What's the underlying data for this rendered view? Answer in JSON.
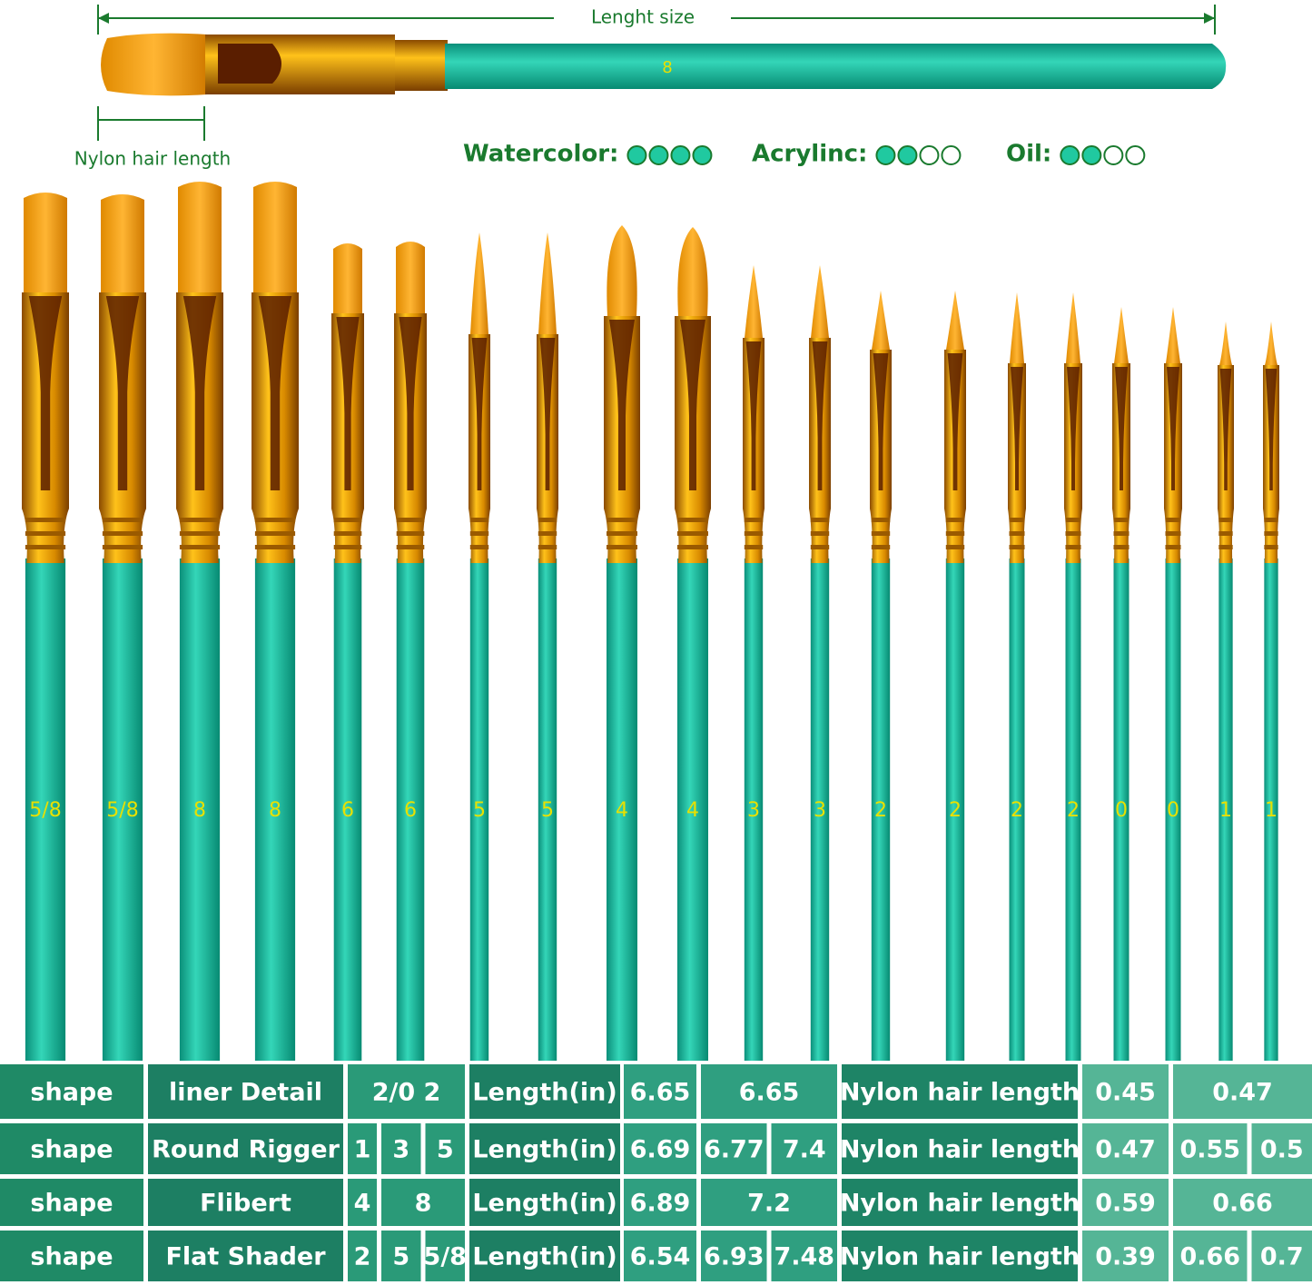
{
  "header": {
    "length_label": "Lenght  size",
    "nylon_label": "Nylon hair length",
    "top_brush_number": "8"
  },
  "suitability": [
    {
      "label": "Watercolor:",
      "rating": 4
    },
    {
      "label": "Acrylinc:",
      "rating": 2
    },
    {
      "label": "Oil:",
      "rating": 2
    }
  ],
  "brushes": [
    "5/8",
    "5/8",
    "8",
    "8",
    "6",
    "6",
    "5",
    "5",
    "4",
    "4",
    "3",
    "3",
    "2",
    "2",
    "2",
    "2",
    "0",
    "0",
    "1",
    "1"
  ],
  "table": {
    "rows": [
      {
        "shape": "shape",
        "name": "liner Detail",
        "sizes": [
          "2/0 2"
        ],
        "length_label": "Length(in)",
        "lengths": [
          "6.65",
          "6.65"
        ],
        "nylon_label": "Nylon hair length",
        "nylon": [
          "0.45",
          "0.47"
        ]
      },
      {
        "shape": "shape",
        "name": "Round Rigger",
        "sizes": [
          "1",
          "3",
          "5"
        ],
        "length_label": "Length(in)",
        "lengths": [
          "6.69",
          "6.77",
          "7.4"
        ],
        "nylon_label": "Nylon hair length",
        "nylon": [
          "0.47",
          "0.55",
          "0.5"
        ]
      },
      {
        "shape": "shape",
        "name": "Flibert",
        "sizes": [
          "4",
          "8"
        ],
        "length_label": "Length(in)",
        "lengths": [
          "6.89",
          "7.2"
        ],
        "nylon_label": "Nylon hair length",
        "nylon": [
          "0.59",
          "0.66"
        ]
      },
      {
        "shape": "shape",
        "name": "Flat Shader",
        "sizes": [
          "2",
          "5",
          "5/8"
        ],
        "length_label": "Length(in)",
        "lengths": [
          "6.54",
          "6.93",
          "7.48"
        ],
        "nylon_label": "Nylon hair length",
        "nylon": [
          "0.39",
          "0.66",
          "0.7"
        ]
      }
    ]
  }
}
